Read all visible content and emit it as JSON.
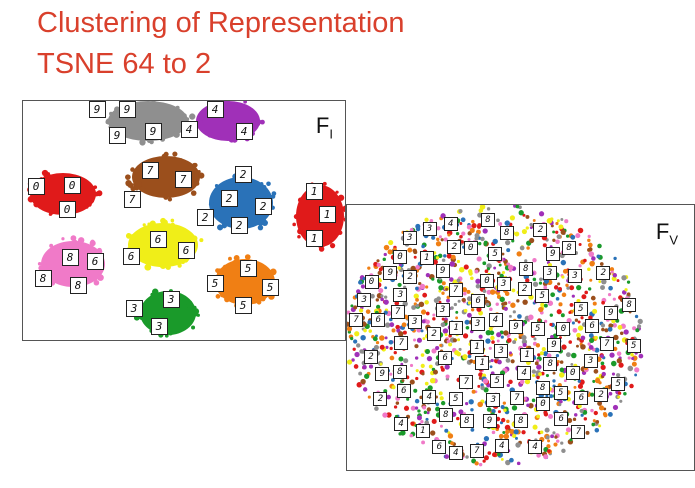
{
  "title": {
    "line1": "Clustering of Representation",
    "line2": "TSNE 64 to 2",
    "color": "#d9402c"
  },
  "panel_left": {
    "label": "F",
    "label_sub": "I",
    "clusters": [
      {
        "digit": "9",
        "color": "#8f8f8f",
        "samples": [
          "9",
          "9",
          "9",
          "9"
        ]
      },
      {
        "digit": "4",
        "color": "#a030b8",
        "samples": [
          "4",
          "4",
          "4"
        ]
      },
      {
        "digit": "7",
        "color": "#9b4f1c",
        "samples": [
          "7",
          "7",
          "7"
        ]
      },
      {
        "digit": "2",
        "color": "#2a72b8",
        "samples": [
          "2",
          "2",
          "2",
          "2",
          "2"
        ]
      },
      {
        "digit": "0",
        "color": "#e01a1a",
        "samples": [
          "0",
          "0",
          "0"
        ]
      },
      {
        "digit": "1",
        "color": "#e01a1a",
        "samples": [
          "1",
          "1",
          "1"
        ]
      },
      {
        "digit": "6",
        "color": "#f0ee18",
        "samples": [
          "6",
          "6",
          "6"
        ]
      },
      {
        "digit": "8",
        "color": "#f07ac8",
        "samples": [
          "8",
          "6",
          "8",
          "8"
        ]
      },
      {
        "digit": "5",
        "color": "#f07f14",
        "samples": [
          "5",
          "5",
          "5",
          "5"
        ]
      },
      {
        "digit": "3",
        "color": "#1a9a2a",
        "samples": [
          "3",
          "3",
          "3"
        ]
      }
    ]
  },
  "panel_right": {
    "label": "F",
    "label_sub": "V",
    "palette": [
      "#e01a1a",
      "#2a72b8",
      "#1a9a2a",
      "#f0ee18",
      "#f07f14",
      "#a030b8",
      "#f07ac8",
      "#9b4f1c",
      "#8f8f8f"
    ],
    "samples": [
      "2",
      "3",
      "7",
      "3",
      "2",
      "8",
      "6",
      "4",
      "8",
      "4",
      "3",
      "3",
      "5",
      "0",
      "3",
      "6",
      "9",
      "8",
      "9",
      "7",
      "8",
      "6",
      "7",
      "8",
      "2",
      "4",
      "2",
      "0",
      "9",
      "2",
      "0",
      "8",
      "6",
      "1",
      "9",
      "1",
      "6",
      "3",
      "4",
      "6",
      "5",
      "9",
      "5",
      "8",
      "5",
      "5",
      "1",
      "0",
      "1",
      "8",
      "9",
      "3",
      "5",
      "2",
      "3",
      "4",
      "9",
      "2",
      "3",
      "4",
      "1",
      "2",
      "7",
      "3",
      "6",
      "8",
      "7",
      "0",
      "5",
      "0",
      "4",
      "1",
      "7",
      "5",
      "7",
      "8",
      "9",
      "7",
      "4",
      "8",
      "6",
      "0",
      "3",
      "7",
      "3",
      "2",
      "5",
      "3"
    ]
  }
}
